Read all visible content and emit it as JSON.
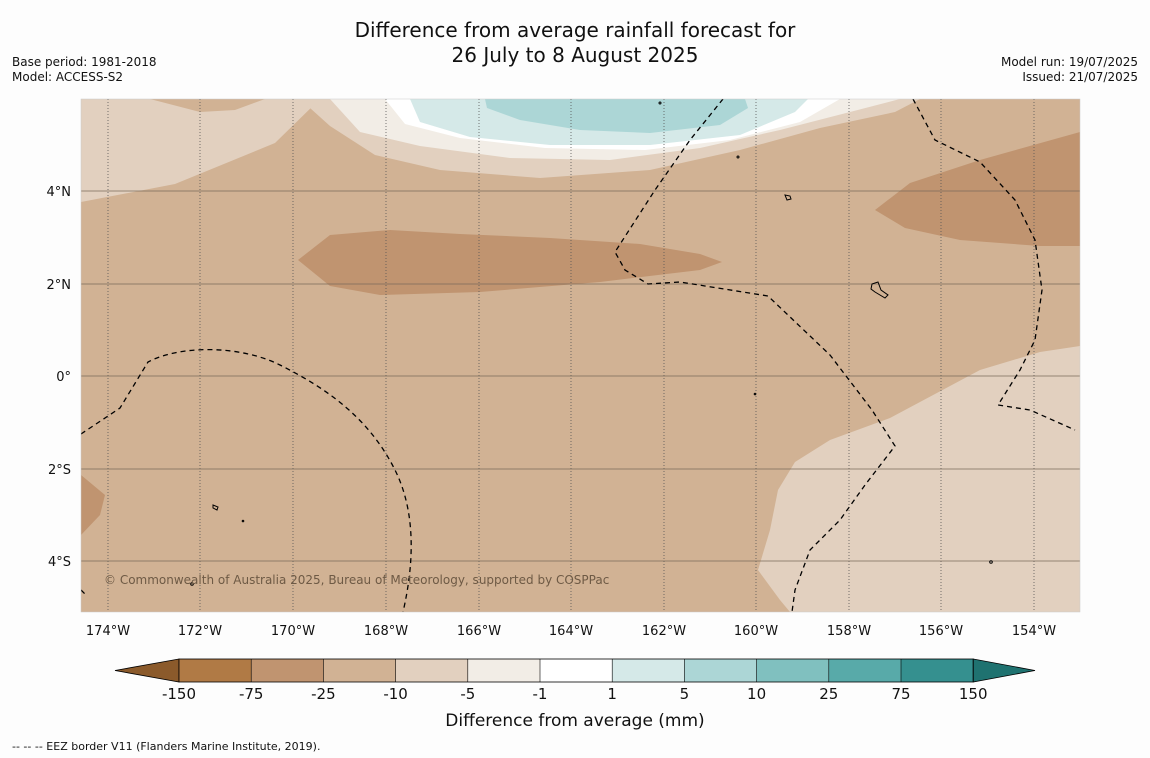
{
  "title_line1": "Difference from average rainfall forecast for",
  "title_line2": "26 July to 8 August 2025",
  "base_period": "Base period: 1981-2018",
  "model": "Model: ACCESS-S2",
  "model_run": "Model run: 19/07/2025",
  "issued": "Issued: 21/07/2025",
  "copyright": "© Commonwealth of Australia 2025, Bureau of Meteorology, supported by COSPPac",
  "lon_labels": [
    "174°W",
    "172°W",
    "170°W",
    "168°W",
    "166°W",
    "164°W",
    "162°W",
    "160°W",
    "158°W",
    "156°W",
    "154°W"
  ],
  "lat_labels": [
    "4°N",
    "2°N",
    "0°",
    "2°S",
    "4°S"
  ],
  "colorbar": {
    "title": "Difference from average (mm)",
    "ticks": [
      "-150",
      "-75",
      "-25",
      "-10",
      "-5",
      "-1",
      "1",
      "5",
      "10",
      "25",
      "75",
      "150"
    ],
    "colors": [
      "#8b5a2b",
      "#b07a45",
      "#c09470",
      "#d1b294",
      "#e2d0bf",
      "#f2ede6",
      "#ffffff",
      "#d5e9e8",
      "#acd6d6",
      "#80c0bf",
      "#58aaa9",
      "#35908f",
      "#1f7270"
    ]
  },
  "footnote": "--  --  -- EEZ border V11 (Flanders Marine Institute, 2019)."
}
